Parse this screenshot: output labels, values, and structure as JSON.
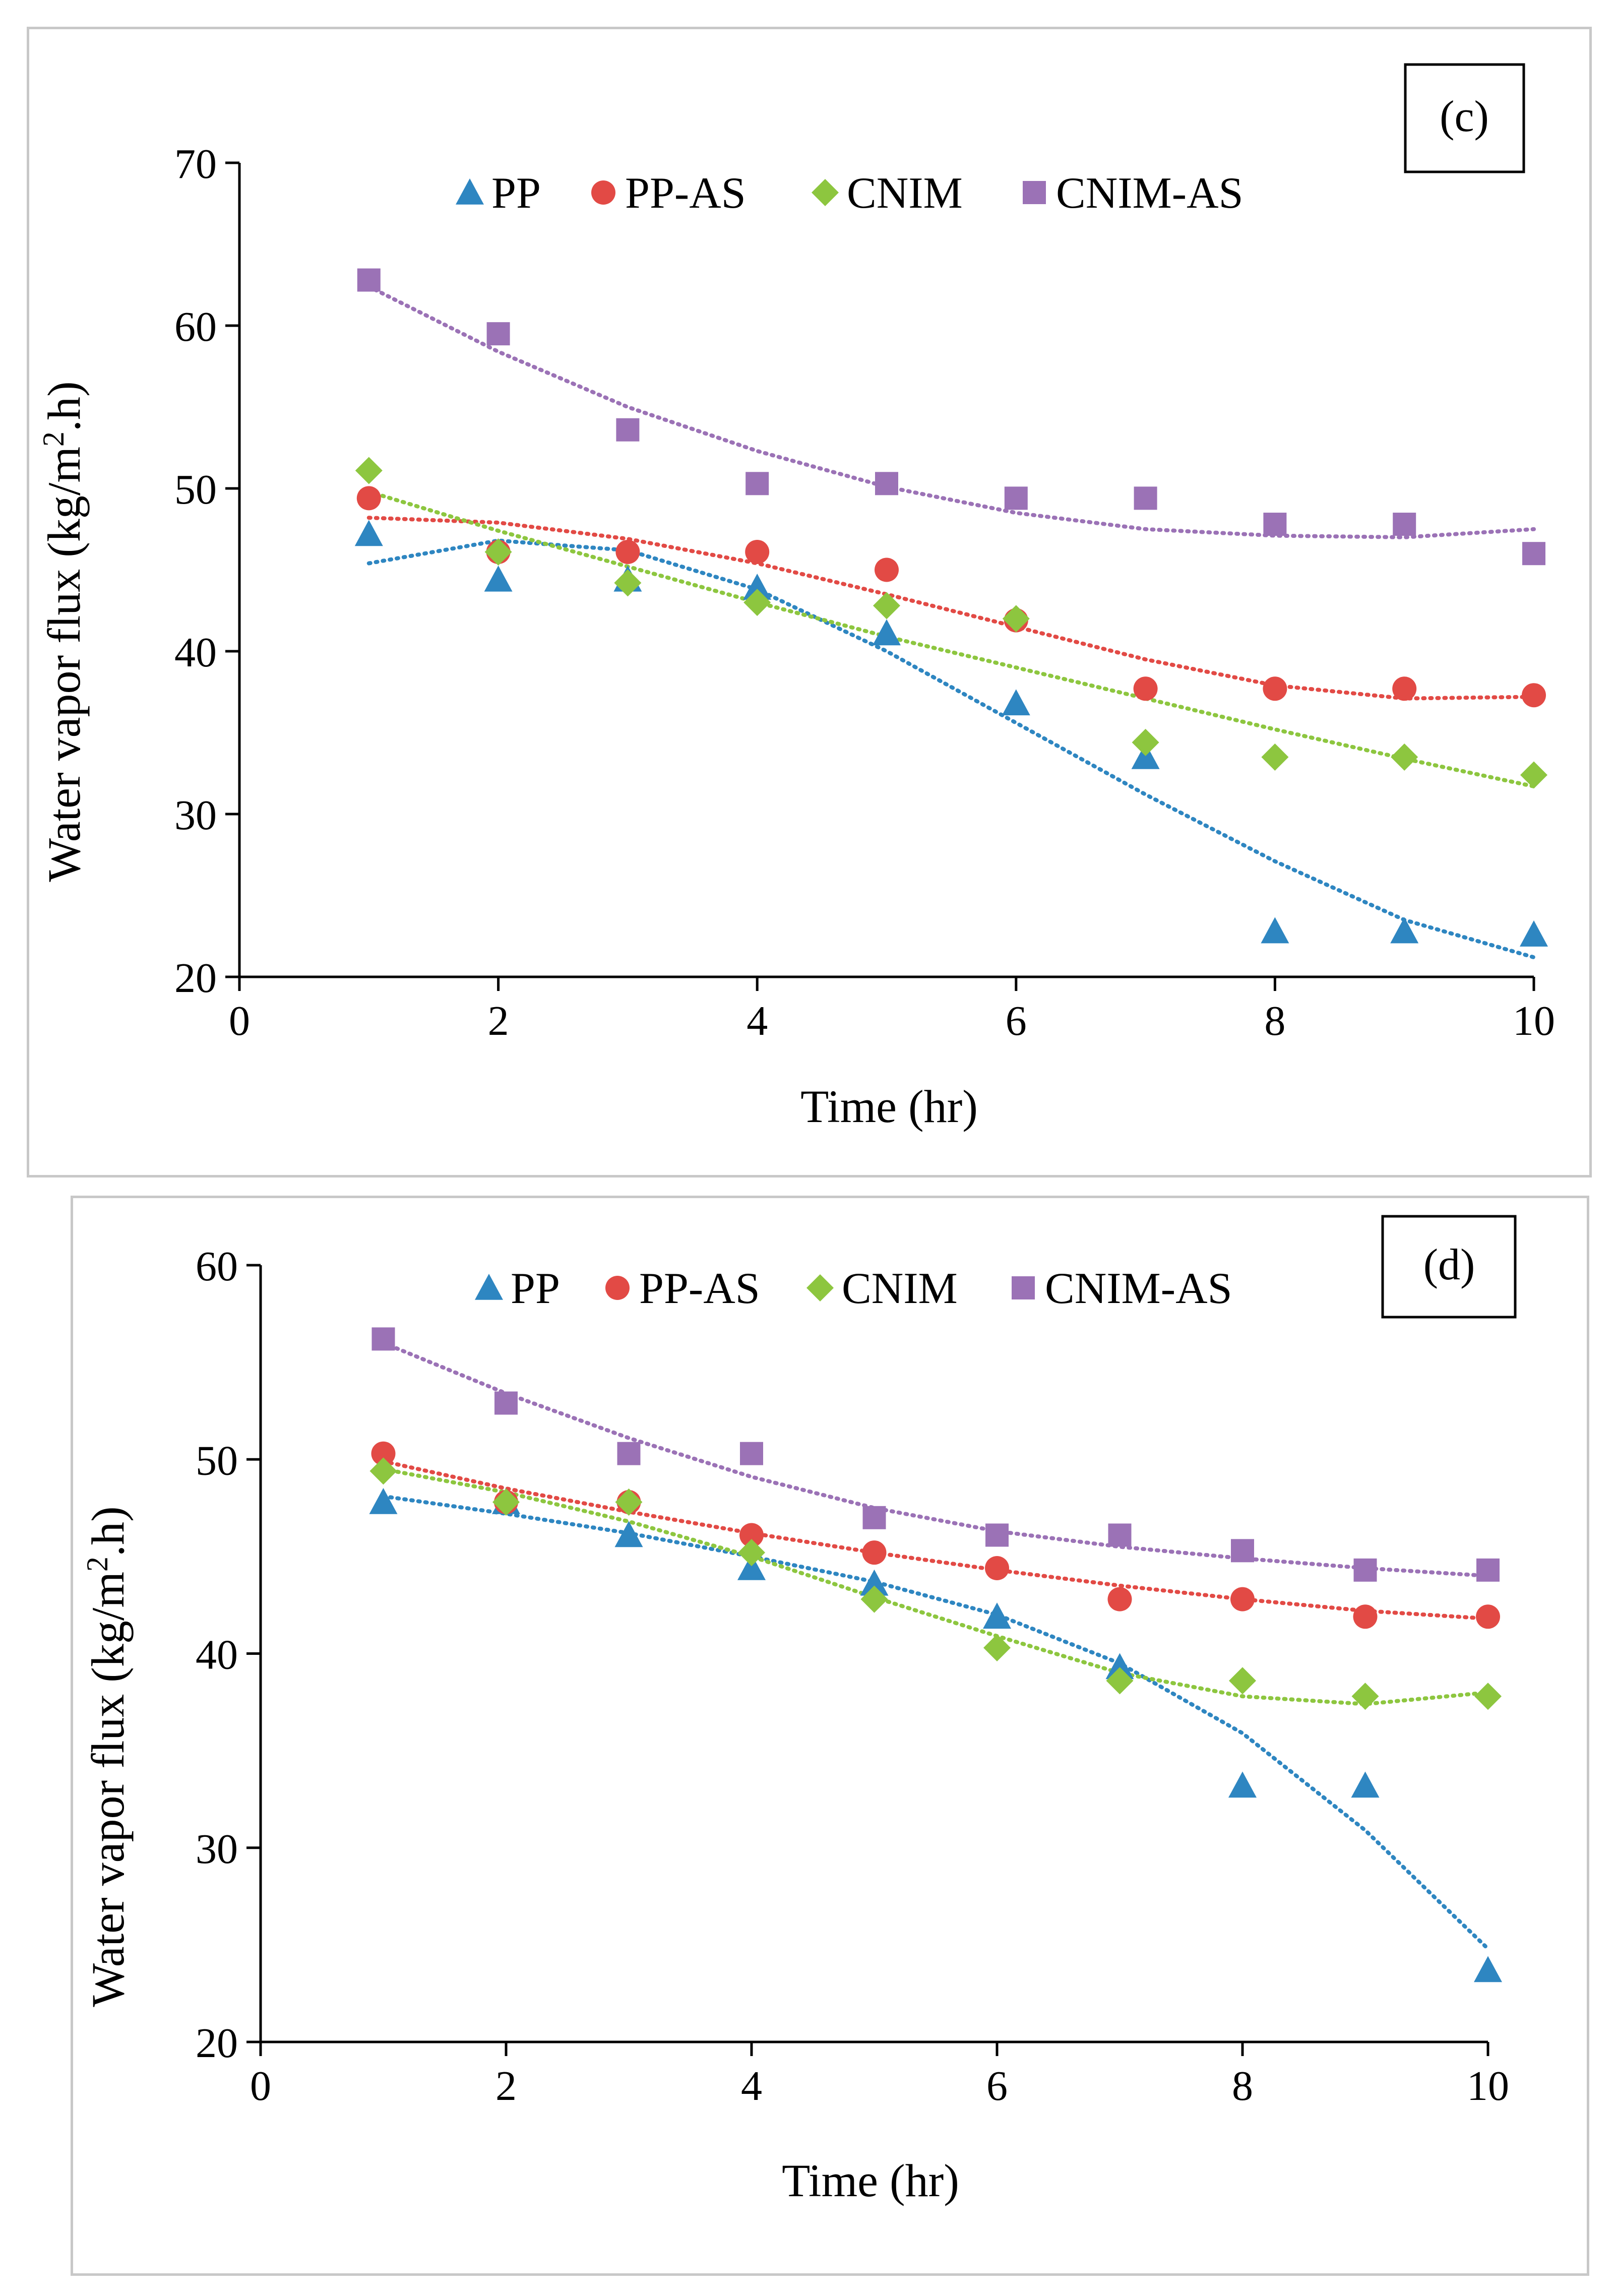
{
  "colors": {
    "PP": "#2e86c1",
    "PP-AS": "#e24a45",
    "CNIM": "#8dc63f",
    "CNIM-AS": "#9b72b6"
  },
  "chart_data": [
    {
      "type": "scatter",
      "panel_label": "(c)",
      "xlabel": "Time (hr)",
      "ylabel": "Water vapor flux (kg/m²·h)",
      "ylabel_main": "Water vapor flux (kg/m",
      "ylabel_sup": "2",
      "ylabel_end": ".h)",
      "xlim": [
        0,
        10
      ],
      "ylim": [
        20,
        70
      ],
      "xticks": [
        0,
        2,
        4,
        6,
        8,
        10
      ],
      "yticks": [
        20,
        30,
        40,
        50,
        60,
        70
      ],
      "legend_position": "top",
      "trendline": "polynomial (dotted)",
      "series": [
        {
          "name": "PP",
          "marker": "triangle",
          "x": [
            1,
            2,
            3,
            4,
            5,
            6,
            7,
            8,
            9,
            10
          ],
          "y": [
            47.2,
            44.4,
            44.4,
            43.9,
            41.1,
            36.8,
            33.5,
            22.8,
            22.8,
            22.6
          ],
          "trend": [
            45.4,
            46.8,
            46.2,
            43.8,
            40.0,
            35.6,
            31.2,
            27.1,
            23.5,
            21.2
          ]
        },
        {
          "name": "PP-AS",
          "marker": "circle",
          "x": [
            1,
            2,
            3,
            4,
            5,
            6,
            7,
            8,
            9,
            10
          ],
          "y": [
            49.4,
            46.1,
            46.1,
            46.1,
            45.0,
            41.9,
            37.7,
            37.7,
            37.7,
            37.3
          ],
          "trend": [
            48.2,
            47.9,
            46.9,
            45.4,
            43.5,
            41.5,
            39.5,
            37.9,
            37.1,
            37.2
          ]
        },
        {
          "name": "CNIM",
          "marker": "diamond",
          "x": [
            1,
            2,
            3,
            4,
            5,
            6,
            7,
            8,
            9,
            10
          ],
          "y": [
            51.1,
            46.1,
            44.2,
            43.0,
            42.8,
            42.0,
            34.4,
            33.5,
            33.5,
            32.4
          ],
          "trend": [
            49.8,
            47.4,
            45.2,
            43.0,
            40.9,
            39.0,
            37.1,
            35.2,
            33.4,
            31.7
          ]
        },
        {
          "name": "CNIM-AS",
          "marker": "square",
          "x": [
            1,
            2,
            3,
            4,
            5,
            6,
            7,
            8,
            9,
            10
          ],
          "y": [
            62.8,
            59.5,
            53.6,
            50.3,
            50.3,
            49.4,
            49.4,
            47.8,
            47.8,
            46.0
          ],
          "trend": [
            62.4,
            58.4,
            55.0,
            52.3,
            50.1,
            48.5,
            47.5,
            47.1,
            47.0,
            47.5
          ]
        }
      ]
    },
    {
      "type": "scatter",
      "panel_label": "(d)",
      "xlabel": "Time (hr)",
      "ylabel": "Water vapor flux (kg/m²·h)",
      "ylabel_main": "Water vapor flux (kg/m",
      "ylabel_sup": "2",
      "ylabel_end": ".h)",
      "xlim": [
        0,
        10
      ],
      "ylim": [
        20,
        60
      ],
      "xticks": [
        0,
        2,
        4,
        6,
        8,
        10
      ],
      "yticks": [
        20,
        30,
        40,
        50,
        60
      ],
      "legend_position": "top",
      "trendline": "polynomial (dotted)",
      "series": [
        {
          "name": "PP",
          "marker": "triangle",
          "x": [
            1,
            2,
            3,
            4,
            5,
            6,
            7,
            8,
            9,
            10
          ],
          "y": [
            47.8,
            47.8,
            46.1,
            44.4,
            43.6,
            41.9,
            39.3,
            33.2,
            33.2,
            23.7
          ],
          "trend": [
            48.1,
            47.2,
            46.2,
            45.0,
            43.7,
            42.0,
            39.5,
            35.9,
            30.9,
            24.8
          ]
        },
        {
          "name": "PP-AS",
          "marker": "circle",
          "x": [
            1,
            2,
            3,
            4,
            5,
            6,
            7,
            8,
            9,
            10
          ],
          "y": [
            50.3,
            47.8,
            47.8,
            46.1,
            45.2,
            44.4,
            42.8,
            42.8,
            41.9,
            41.9
          ],
          "trend": [
            49.9,
            48.5,
            47.3,
            46.2,
            45.2,
            44.3,
            43.5,
            42.8,
            42.2,
            41.8
          ]
        },
        {
          "name": "CNIM",
          "marker": "diamond",
          "x": [
            1,
            2,
            3,
            4,
            5,
            6,
            7,
            8,
            9,
            10
          ],
          "y": [
            49.4,
            47.8,
            47.8,
            45.2,
            42.8,
            40.3,
            38.6,
            38.6,
            37.8,
            37.8
          ],
          "trend": [
            49.5,
            48.3,
            46.8,
            45.0,
            42.9,
            40.9,
            39.0,
            37.8,
            37.4,
            38.0
          ]
        },
        {
          "name": "CNIM-AS",
          "marker": "square",
          "x": [
            1,
            2,
            3,
            4,
            5,
            6,
            7,
            8,
            9,
            10
          ],
          "y": [
            56.2,
            52.9,
            50.3,
            50.3,
            47.0,
            46.1,
            46.1,
            45.3,
            44.3,
            44.3
          ],
          "trend": [
            56.0,
            53.4,
            51.1,
            49.1,
            47.5,
            46.3,
            45.5,
            44.9,
            44.4,
            44.0
          ]
        }
      ]
    }
  ]
}
